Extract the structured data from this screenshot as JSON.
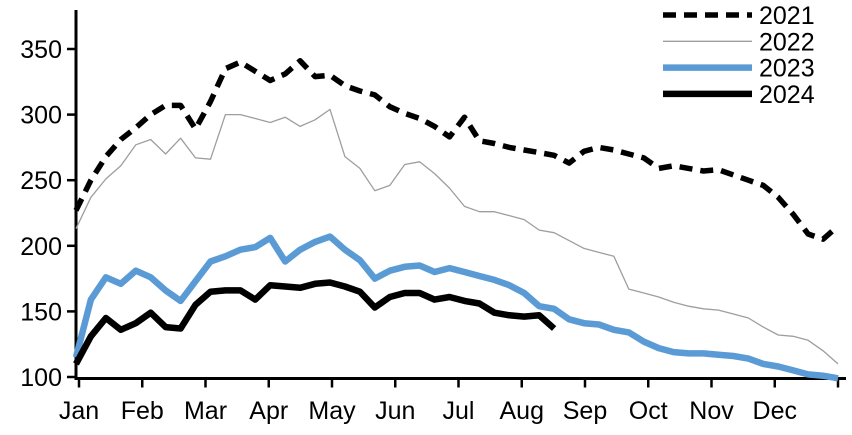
{
  "chart_data": {
    "type": "line",
    "title": "",
    "x_axis": {
      "unit": "week-of-year",
      "tick_labels": [
        "Jan",
        "Feb",
        "Mar",
        "Apr",
        "May",
        "Jun",
        "Jul",
        "Aug",
        "Sep",
        "Oct",
        "Nov",
        "Dec"
      ]
    },
    "y_axis": {
      "ticks": [
        100,
        150,
        200,
        250,
        300,
        350
      ],
      "range": [
        100,
        380
      ],
      "grid": false
    },
    "legend": {
      "position": "top-right",
      "entries": [
        "2021",
        "2022",
        "2023",
        "2024"
      ]
    },
    "colors": {
      "black": "#000000",
      "gray": "#9e9e9e",
      "blue": "#5b9bd5"
    },
    "series": [
      {
        "name": "2021",
        "color": "#000000",
        "style": "dashed",
        "width": 5.5,
        "values": [
          227,
          250,
          268,
          281,
          290,
          300,
          307,
          307,
          289,
          310,
          335,
          340,
          333,
          326,
          331,
          341,
          329,
          330,
          322,
          318,
          315,
          306,
          301,
          297,
          291,
          283,
          298,
          280,
          278,
          275,
          273,
          271,
          269,
          263,
          272,
          275,
          273,
          270,
          267,
          259,
          261,
          259,
          257,
          258,
          254,
          250,
          246,
          237,
          224,
          209,
          205,
          215
        ]
      },
      {
        "name": "2022",
        "color": "#9e9e9e",
        "style": "solid",
        "width": 1.3,
        "values": [
          213,
          237,
          251,
          261,
          277,
          281,
          270,
          282,
          267,
          266,
          300,
          300,
          297,
          294,
          298,
          291,
          296,
          304,
          268,
          259,
          242,
          246,
          262,
          264,
          255,
          244,
          230,
          226,
          226,
          223,
          220,
          212,
          210,
          204,
          198,
          195,
          192,
          167,
          164,
          161,
          157,
          154,
          152,
          151,
          148,
          145,
          138,
          132,
          131,
          128,
          120,
          110
        ]
      },
      {
        "name": "2023",
        "color": "#5b9bd5",
        "style": "solid",
        "width": 6.5,
        "values": [
          115,
          159,
          176,
          171,
          181,
          176,
          166,
          158,
          173,
          188,
          192,
          197,
          199,
          206,
          188,
          197,
          203,
          207,
          197,
          189,
          175,
          181,
          184,
          185,
          180,
          183,
          180,
          177,
          174,
          170,
          164,
          154,
          152,
          144,
          141,
          140,
          136,
          134,
          127,
          122,
          119,
          118,
          118,
          117,
          116,
          114,
          110,
          108,
          105,
          102,
          101,
          99
        ]
      },
      {
        "name": "2024",
        "color": "#000000",
        "style": "solid",
        "width": 6.5,
        "values": [
          110,
          131,
          145,
          136,
          141,
          149,
          138,
          137,
          155,
          165,
          166,
          166,
          159,
          170,
          169,
          168,
          171,
          172,
          169,
          165,
          153,
          161,
          164,
          164,
          159,
          161,
          158,
          156,
          149,
          147,
          146,
          147,
          137
        ]
      }
    ]
  }
}
